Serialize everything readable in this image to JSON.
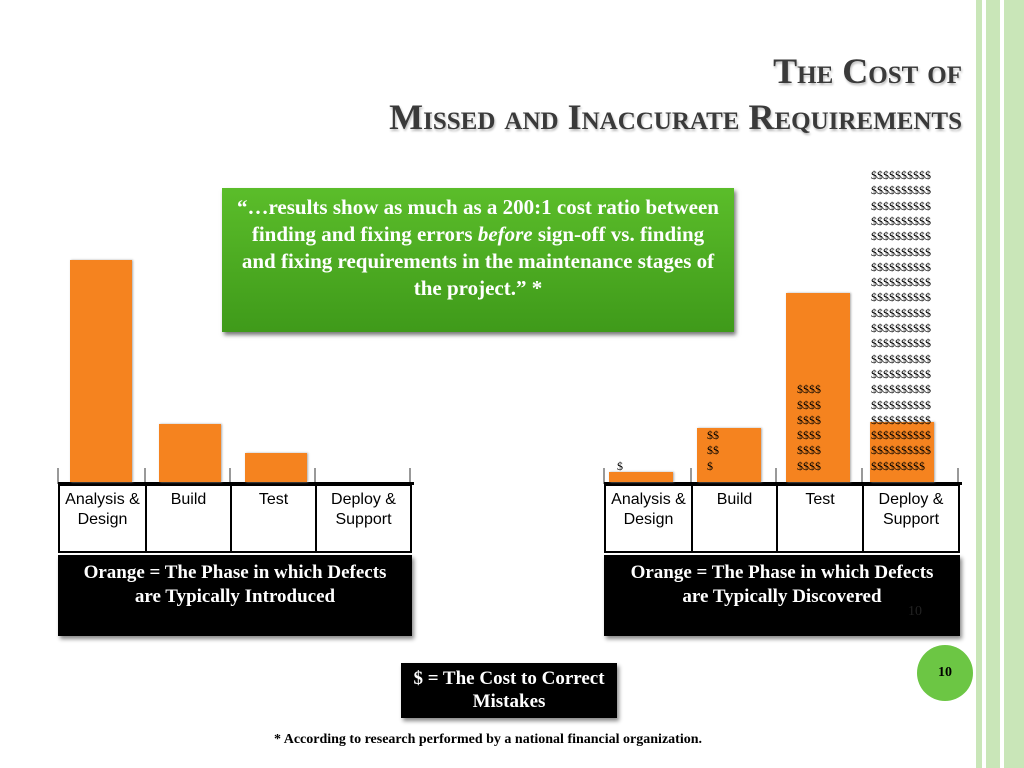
{
  "title": [
    "The Cost of",
    "Missed and Inaccurate Requirements"
  ],
  "quote": [
    "“…results show as much as a 200:1 cost ratio between finding and fixing errors ",
    "before",
    " sign-off vs. finding and fixing requirements in the maintenance stages of the project.” *"
  ],
  "chart_data": [
    {
      "type": "bar",
      "categories": [
        "Analysis & Design",
        "Build",
        "Test",
        "Deploy & Support"
      ],
      "values": [
        222,
        58,
        29,
        0
      ],
      "color": "#f5831f",
      "caption": "Orange = The Phase in which Defects are Typically Introduced"
    },
    {
      "type": "bar",
      "categories": [
        "Analysis & Design",
        "Build",
        "Test",
        "Deploy & Support"
      ],
      "values": [
        10,
        54,
        189,
        60
      ],
      "color": "#f5831f",
      "caption": "Orange = The Phase in which Defects are Typically Discovered",
      "dollar_stacks": [
        [
          "$"
        ],
        [
          "$$",
          "$$",
          "$"
        ],
        [
          "$$$$",
          "$$$$",
          "$$$$",
          "$$$$",
          "$$$$",
          "$$$$"
        ],
        [
          "$$$$$$$$$$",
          "$$$$$$$$$$",
          "$$$$$$$$$$",
          "$$$$$$$$$$",
          "$$$$$$$$$$",
          "$$$$$$$$$$",
          "$$$$$$$$$$",
          "$$$$$$$$$$",
          "$$$$$$$$$$",
          "$$$$$$$$$$",
          "$$$$$$$$$$",
          "$$$$$$$$$$",
          "$$$$$$$$$$",
          "$$$$$$$$$$",
          "$$$$$$$$$$",
          "$$$$$$$$$$",
          "$$$$$$$$$$",
          "$$$$$$$$$$",
          "$$$$$$$$$$",
          "$$$$$$$$$"
        ]
      ]
    }
  ],
  "legend": "$ = The Cost to Correct Mistakes",
  "footnote": "* According to research performed by a national financial organization.",
  "page_number": "10"
}
